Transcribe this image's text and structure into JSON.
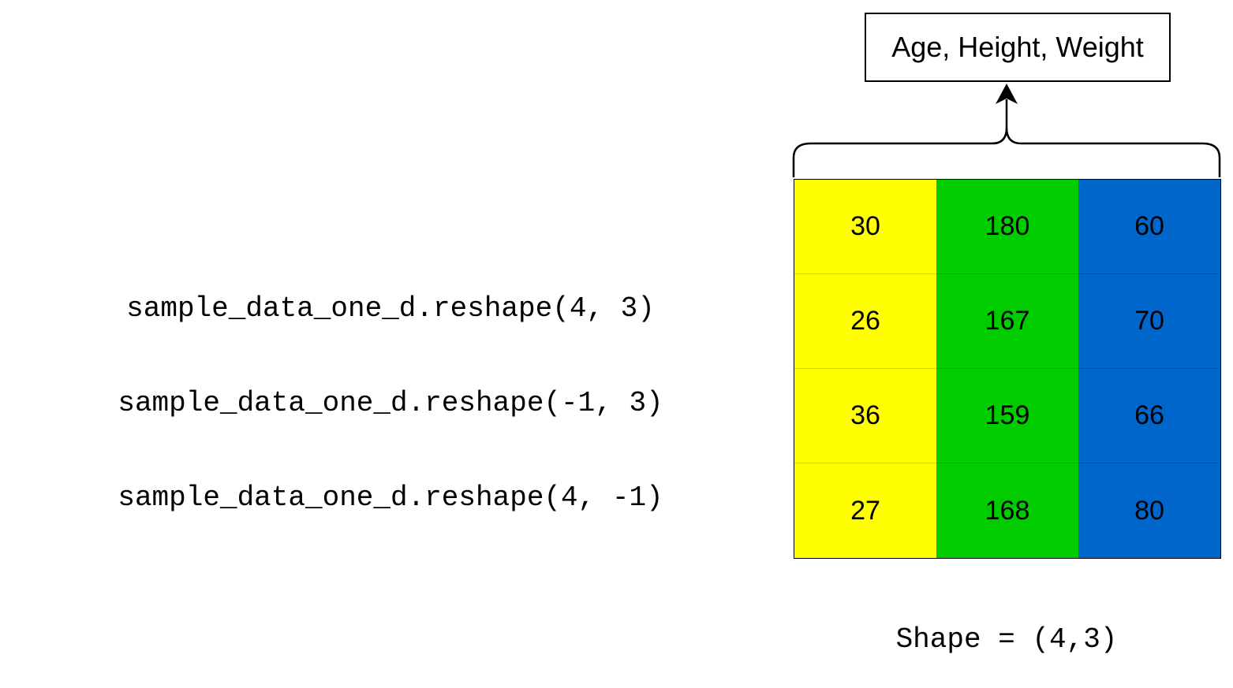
{
  "code_lines": [
    "sample_data_one_d.reshape(4, 3)",
    "sample_data_one_d.reshape(-1, 3)",
    "sample_data_one_d.reshape(4, -1)"
  ],
  "header_label": "Age, Height, Weight",
  "column_colors": [
    "#ffff00",
    "#00cc00",
    "#0066cc"
  ],
  "table": {
    "rows": [
      [
        "30",
        "180",
        "60"
      ],
      [
        "26",
        "167",
        "70"
      ],
      [
        "36",
        "159",
        "66"
      ],
      [
        "27",
        "168",
        "80"
      ]
    ]
  },
  "shape_caption": "Shape = (4,3)"
}
